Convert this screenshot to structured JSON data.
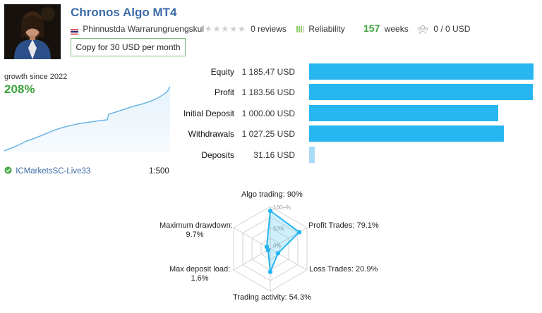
{
  "header": {
    "title": "Chronos Algo MT4",
    "author": "Phinnustda Warrarungruengskul",
    "reviews": "0 reviews",
    "reliability": "Reliability",
    "weeks_num": "157",
    "weeks_label": "weeks",
    "subscribers": "0 / 0 USD",
    "copy_button": "Copy for 30 USD per month"
  },
  "growth": {
    "label": "growth since 2022",
    "value": "208%"
  },
  "account": {
    "broker": "ICMarketsSC-Live33",
    "leverage": "1:500"
  },
  "bars": [
    {
      "label": "Equity",
      "value": "1 185.47 USD",
      "fraction": 1.0
    },
    {
      "label": "Profit",
      "value": "1 183.56 USD",
      "fraction": 0.998
    },
    {
      "label": "Initial Deposit",
      "value": "1 000.00 USD",
      "fraction": 0.844
    },
    {
      "label": "Withdrawals",
      "value": "1 027.25 USD",
      "fraction": 0.867
    },
    {
      "label": "Deposits",
      "value": "31.16 USD",
      "fraction": 0.026
    }
  ],
  "radar": {
    "scale_top": "100+%",
    "scale_mid": "50%",
    "scale_low": "0%",
    "axes": [
      {
        "label": "Algo trading: 90%",
        "value": 0.9
      },
      {
        "label": "Profit Trades: 79.1%",
        "value": 0.791
      },
      {
        "label": "Loss Trades: 20.9%",
        "value": 0.209
      },
      {
        "label": "Trading activity: 54.3%",
        "value": 0.543
      },
      {
        "label": "Max deposit load:",
        "label2": "1.6%",
        "value": 0.016
      },
      {
        "label": "Maximum drawdown:",
        "label2": "9.7%",
        "value": 0.097
      }
    ]
  },
  "colors": {
    "accent_blue": "#27b6f0",
    "title_blue": "#3c6aa6",
    "green": "#3aa33a"
  }
}
